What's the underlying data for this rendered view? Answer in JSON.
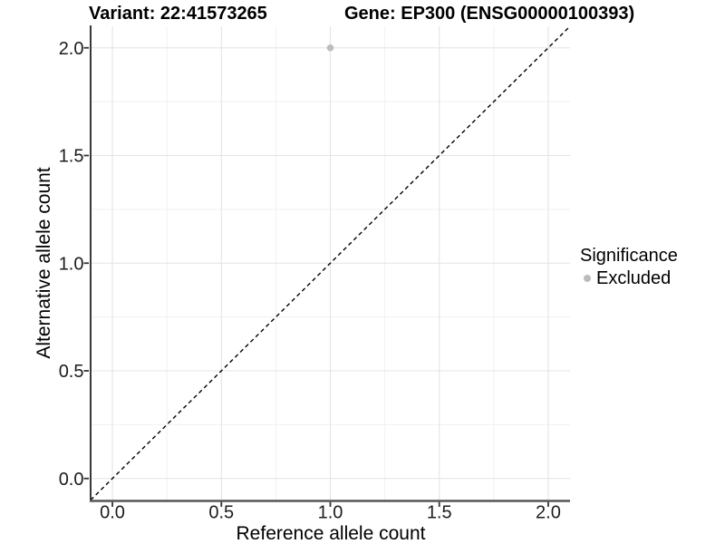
{
  "chart_data": {
    "type": "scatter",
    "title_left": "Variant: 22:41573265",
    "title_right": "Gene: EP300 (ENSG00000100393)",
    "xlabel": "Reference allele count",
    "ylabel": "Alternative allele count",
    "xlim": [
      -0.1,
      2.1
    ],
    "ylim": [
      -0.1,
      2.1
    ],
    "x_ticks": [
      0.0,
      0.5,
      1.0,
      1.5,
      2.0
    ],
    "x_tick_labels": [
      "0.0",
      "0.5",
      "1.0",
      "1.5",
      "2.0"
    ],
    "y_ticks": [
      0.0,
      0.5,
      1.0,
      1.5,
      2.0
    ],
    "y_tick_labels": [
      "0.0",
      "0.5",
      "1.0",
      "1.5",
      "2.0"
    ],
    "x_minor_ticks": [
      0.25,
      0.75,
      1.25,
      1.75
    ],
    "y_minor_ticks": [
      0.25,
      0.75,
      1.25,
      1.75
    ],
    "grid": "major+minor",
    "points": [
      {
        "x": 1.0,
        "y": 2.0,
        "series": "Excluded"
      }
    ],
    "reference_line": {
      "kind": "identity",
      "slope": 1,
      "intercept": 0,
      "style": "dashed",
      "color": "#000000"
    },
    "legend": {
      "title": "Significance",
      "position": "right",
      "entries": [
        {
          "label": "Excluded",
          "color": "#bcbcbc"
        }
      ]
    },
    "colors": {
      "point_excluded": "#bcbcbc",
      "grid_major": "#e4e4e4",
      "grid_minor": "#f0f0f0",
      "axis_line_left": "#2e2e2e",
      "axis_line_bottom": "#565656",
      "tick_mark": "#333333",
      "tick_label": "#1c1c1c",
      "text": "#000000",
      "background": "#ffffff"
    }
  }
}
